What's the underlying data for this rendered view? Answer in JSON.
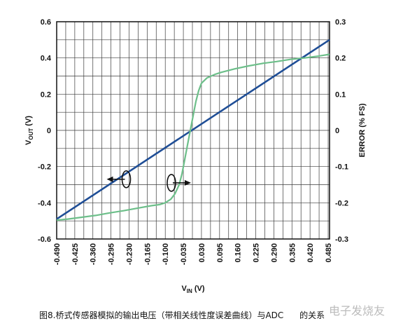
{
  "chart_data": {
    "type": "line",
    "x_tick_labels": [
      "-0.490",
      "-0.425",
      "-0.360",
      "-0.295",
      "-0.230",
      "-0.165",
      "-0.100",
      "-0.035",
      "0.030",
      "0.095",
      "0.160",
      "0.225",
      "0.290",
      "0.355",
      "0.420",
      "0.485"
    ],
    "x_ticks": [
      -0.49,
      -0.425,
      -0.36,
      -0.295,
      -0.23,
      -0.165,
      -0.1,
      -0.035,
      0.03,
      0.095,
      0.16,
      0.225,
      0.29,
      0.355,
      0.42,
      0.485
    ],
    "xlim": [
      -0.49,
      0.49
    ],
    "ylim_left": [
      -0.6,
      0.6
    ],
    "ylim_right": [
      -0.3,
      0.3
    ],
    "y_left_tick_labels": [
      "0.6",
      "0.4",
      "0.2",
      "0",
      "-0.2",
      "-0.4",
      "-0.6"
    ],
    "y_left_ticks": [
      0.6,
      0.4,
      0.2,
      0,
      -0.2,
      -0.4,
      -0.6
    ],
    "y_right_tick_labels": [
      "0.3",
      "0.2",
      "0.1",
      "0",
      "-0.1",
      "-0.2",
      "-0.3"
    ],
    "y_right_ticks": [
      0.3,
      0.2,
      0.1,
      0,
      -0.1,
      -0.2,
      -0.3
    ],
    "xlabel_main": "V",
    "xlabel_sub": "IN",
    "xlabel_unit": " (V)",
    "ylabel_left_main": "V",
    "ylabel_left_sub": "OUT",
    "ylabel_left_unit": " (V)",
    "ylabel_right": "ERROR (% FS)",
    "grid": true,
    "series": [
      {
        "axis": "left",
        "color": "#1f4e96",
        "x": [
          -0.49,
          0.49
        ],
        "y": [
          -0.49,
          0.5
        ]
      },
      {
        "axis": "right",
        "color": "#6dbf8a",
        "x": [
          -0.49,
          -0.45,
          -0.4,
          -0.35,
          -0.3,
          -0.25,
          -0.2,
          -0.15,
          -0.12,
          -0.1,
          -0.08,
          -0.065,
          -0.05,
          -0.04,
          -0.03,
          -0.02,
          -0.01,
          0.0,
          0.01,
          0.02,
          0.03,
          0.05,
          0.08,
          0.1,
          0.15,
          0.2,
          0.25,
          0.3,
          0.35,
          0.4,
          0.45,
          0.49
        ],
        "y": [
          -0.248,
          -0.245,
          -0.24,
          -0.235,
          -0.228,
          -0.222,
          -0.215,
          -0.208,
          -0.205,
          -0.2,
          -0.19,
          -0.175,
          -0.15,
          -0.12,
          -0.08,
          -0.04,
          0.0,
          0.04,
          0.08,
          0.11,
          0.13,
          0.145,
          0.155,
          0.16,
          0.17,
          0.178,
          0.185,
          0.19,
          0.196,
          0.2,
          0.205,
          0.21
        ]
      }
    ],
    "annotations": [
      {
        "shape": "ellipse",
        "axis": "left",
        "x": -0.24,
        "y": -0.27,
        "arrow": "left"
      },
      {
        "shape": "ellipse",
        "axis": "left",
        "x": -0.078,
        "y": -0.29,
        "arrow": "right"
      }
    ]
  },
  "caption": "图8.桥式传感器模拟的输出电压（带相关线性度误差曲线）与ADC",
  "caption_tail": "的关系",
  "watermark": "电子发烧友"
}
